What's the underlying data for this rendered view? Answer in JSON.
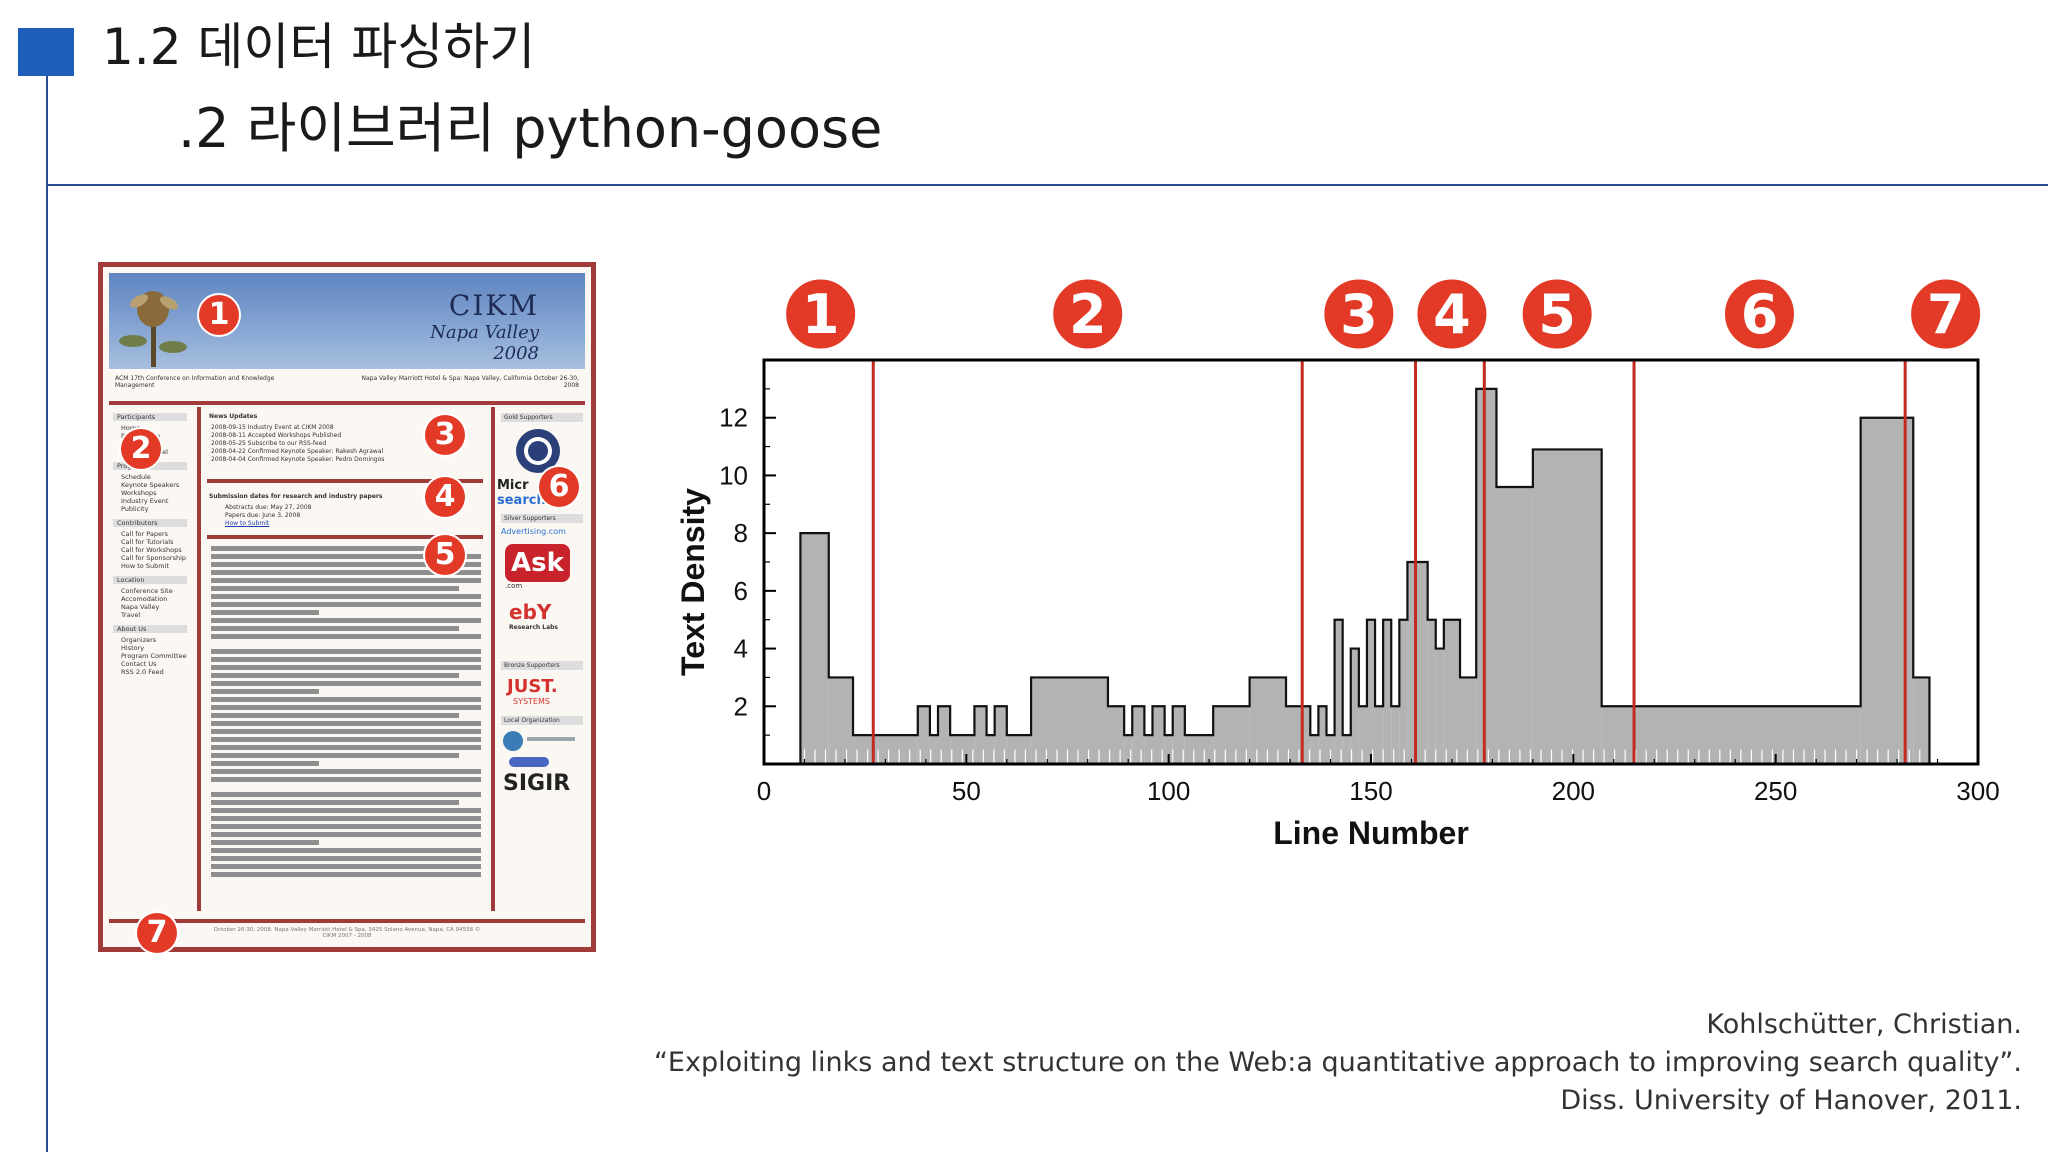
{
  "slide": {
    "title_line1": "1.2 데이터 파싱하기",
    "title_line2": ".2 라이브러리 python-goose"
  },
  "webpage": {
    "logo_main": "CIKM",
    "logo_sub": "Napa Valley",
    "logo_year": "2008",
    "subtitle_left": "ACM 17th Conference on Information and Knowledge Management",
    "subtitle_right": "Napa Valley Marriott Hotel & Spa: Napa Valley, California October 26-30, 2008",
    "left_nav": [
      {
        "label": "Participants",
        "section": true
      },
      {
        "label": "Home",
        "section": false
      },
      {
        "label": "Registration",
        "section": false
      },
      {
        "label": "Dates",
        "section": false
      },
      {
        "label": "Student Travel",
        "section": false
      },
      {
        "label": "Program",
        "section": true
      },
      {
        "label": "Schedule",
        "section": false
      },
      {
        "label": "Keynote Speakers",
        "section": false
      },
      {
        "label": "Workshops",
        "section": false
      },
      {
        "label": "Industry Event",
        "section": false
      },
      {
        "label": "Publicity",
        "section": false
      },
      {
        "label": "Contributors",
        "section": true
      },
      {
        "label": "Call for Papers",
        "section": false
      },
      {
        "label": "Call for Tutorials",
        "section": false
      },
      {
        "label": "Call for Workshops",
        "section": false
      },
      {
        "label": "Call for Sponsorship",
        "section": false
      },
      {
        "label": "How to Submit",
        "section": false
      },
      {
        "label": "Location",
        "section": true
      },
      {
        "label": "Conference Site",
        "section": false
      },
      {
        "label": "Accomodation",
        "section": false
      },
      {
        "label": "Napa Valley",
        "section": false
      },
      {
        "label": "Travel",
        "section": false
      },
      {
        "label": "About Us",
        "section": true
      },
      {
        "label": "Organizers",
        "section": false
      },
      {
        "label": "History",
        "section": false
      },
      {
        "label": "Program Committee",
        "section": false
      },
      {
        "label": "Contact Us",
        "section": false
      },
      {
        "label": "RSS 2.0 Feed",
        "section": false
      }
    ],
    "news_title": "News Updates",
    "news_items": [
      "2008-09-15 Industry Event at CIKM 2008",
      "2008-08-11 Accepted Workshops Published",
      "2008-05-25 Subscribe to our RSS-feed",
      "2008-04-22 Confirmed Keynote Speaker: Rakesh Agrawal",
      "2008-04-04 Confirmed Keynote Speaker: Pedro Domingos"
    ],
    "dates_title": "Submission dates for research and industry papers",
    "dates_items": [
      "Abstracts due: May 27, 2008",
      "Papers due: June 3, 2008",
      "How to Submit"
    ],
    "right_sections": [
      "Gold Supporters",
      "Silver Supporters",
      "Bronze Supporters",
      "Local Organization"
    ],
    "sponsor_ask": "Ask",
    "sponsor_ask_suffix": ".com",
    "sponsor_ebay": "ebY",
    "sponsor_ebay_sub": "Research Labs",
    "sponsor_just": "JUST.",
    "sponsor_just_sub": "SYSTEMS",
    "sponsor_sigir": "SIGIR",
    "sponsor_advertising": "Advertising.com",
    "sponsor_micro": "Micr",
    "sponsor_search": "search",
    "footer_text": "October 26-30, 2008. Napa Valley Marriott Hotel & Spa, 3425 Solano Avenue, Napa, CA 94558 © CIKM 2007 - 2008"
  },
  "webpage_badges": [
    "1",
    "2",
    "3",
    "4",
    "5",
    "6",
    "7"
  ],
  "chart_badges": [
    "1",
    "2",
    "3",
    "4",
    "5",
    "6",
    "7"
  ],
  "chart_data": {
    "type": "bar",
    "xlabel": "Line Number",
    "ylabel": "Text Density",
    "xlim": [
      0,
      300
    ],
    "ylim": [
      0,
      14
    ],
    "xticks": [
      0,
      50,
      100,
      150,
      200,
      250,
      300
    ],
    "yticks": [
      2,
      4,
      6,
      8,
      10,
      12
    ],
    "grid": false,
    "boundaries": [
      27,
      133,
      161,
      178,
      215,
      282
    ],
    "segments": [
      {
        "x0": 9,
        "x1": 16,
        "y": 8
      },
      {
        "x0": 16,
        "x1": 22,
        "y": 3
      },
      {
        "x0": 22,
        "x1": 38,
        "y": 1
      },
      {
        "x0": 38,
        "x1": 41,
        "y": 2
      },
      {
        "x0": 41,
        "x1": 43,
        "y": 1
      },
      {
        "x0": 43,
        "x1": 46,
        "y": 2
      },
      {
        "x0": 46,
        "x1": 52,
        "y": 1
      },
      {
        "x0": 52,
        "x1": 55,
        "y": 2
      },
      {
        "x0": 55,
        "x1": 57,
        "y": 1
      },
      {
        "x0": 57,
        "x1": 60,
        "y": 2
      },
      {
        "x0": 60,
        "x1": 66,
        "y": 1
      },
      {
        "x0": 66,
        "x1": 85,
        "y": 3
      },
      {
        "x0": 85,
        "x1": 89,
        "y": 2
      },
      {
        "x0": 89,
        "x1": 91,
        "y": 1
      },
      {
        "x0": 91,
        "x1": 94,
        "y": 2
      },
      {
        "x0": 94,
        "x1": 96,
        "y": 1
      },
      {
        "x0": 96,
        "x1": 99,
        "y": 2
      },
      {
        "x0": 99,
        "x1": 101,
        "y": 1
      },
      {
        "x0": 101,
        "x1": 104,
        "y": 2
      },
      {
        "x0": 104,
        "x1": 111,
        "y": 1
      },
      {
        "x0": 111,
        "x1": 118,
        "y": 2
      },
      {
        "x0": 118,
        "x1": 120,
        "y": 2
      },
      {
        "x0": 120,
        "x1": 129,
        "y": 3
      },
      {
        "x0": 129,
        "x1": 135,
        "y": 2
      },
      {
        "x0": 135,
        "x1": 137,
        "y": 1
      },
      {
        "x0": 137,
        "x1": 139,
        "y": 2
      },
      {
        "x0": 139,
        "x1": 141,
        "y": 1
      },
      {
        "x0": 141,
        "x1": 143,
        "y": 5
      },
      {
        "x0": 143,
        "x1": 145,
        "y": 1
      },
      {
        "x0": 145,
        "x1": 147,
        "y": 4
      },
      {
        "x0": 147,
        "x1": 149,
        "y": 2
      },
      {
        "x0": 149,
        "x1": 151,
        "y": 5
      },
      {
        "x0": 151,
        "x1": 153,
        "y": 2
      },
      {
        "x0": 153,
        "x1": 155,
        "y": 5
      },
      {
        "x0": 155,
        "x1": 157,
        "y": 2
      },
      {
        "x0": 157,
        "x1": 159,
        "y": 5
      },
      {
        "x0": 159,
        "x1": 164,
        "y": 7
      },
      {
        "x0": 164,
        "x1": 166,
        "y": 5
      },
      {
        "x0": 166,
        "x1": 168,
        "y": 4
      },
      {
        "x0": 168,
        "x1": 172,
        "y": 5
      },
      {
        "x0": 172,
        "x1": 176,
        "y": 3
      },
      {
        "x0": 176,
        "x1": 181,
        "y": 13
      },
      {
        "x0": 181,
        "x1": 190,
        "y": 9.6
      },
      {
        "x0": 190,
        "x1": 207,
        "y": 10.9
      },
      {
        "x0": 207,
        "x1": 271,
        "y": 2
      },
      {
        "x0": 271,
        "x1": 284,
        "y": 12
      },
      {
        "x0": 284,
        "x1": 288,
        "y": 3
      }
    ]
  }
}
